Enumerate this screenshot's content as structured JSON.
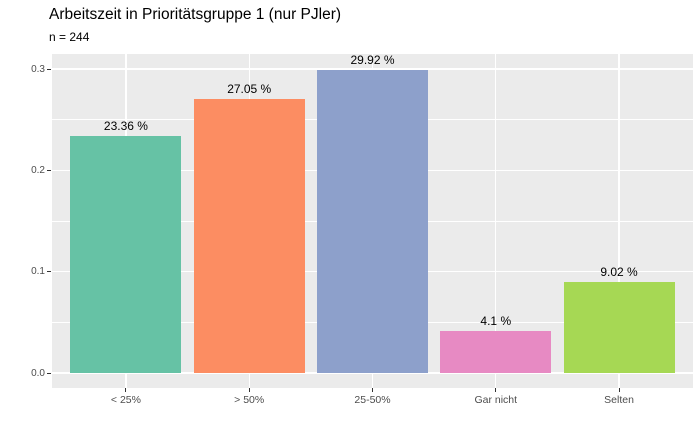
{
  "chart_data": {
    "type": "bar",
    "title": "Arbeitszeit in Prioritätsgruppe 1 (nur PJler)",
    "subtitle": "n = 244",
    "categories": [
      "< 25%",
      "> 50%",
      "25-50%",
      "Gar nicht",
      "Selten"
    ],
    "values": [
      0.2336,
      0.2705,
      0.2992,
      0.041,
      0.0902
    ],
    "bar_labels": [
      "23.36 %",
      "27.05 %",
      "29.92 %",
      "4.1 %",
      "9.02 %"
    ],
    "bar_colors": [
      "#66C2A5",
      "#FC8D62",
      "#8DA0CB",
      "#E78AC3",
      "#A6D854"
    ],
    "xlabel": "",
    "ylabel": "",
    "y_tick_values": [
      0.0,
      0.1,
      0.2,
      0.3
    ],
    "y_tick_labels": [
      "0.0",
      "0.1",
      "0.2",
      "0.3"
    ],
    "ylim": [
      -0.015,
      0.3142
    ],
    "grid": true,
    "legend_position": "none",
    "panel_background": "#EBEBEB",
    "grid_color": "#FFFFFF",
    "axis_text_color": "#4d4d4d",
    "tick_color": "#333333"
  }
}
